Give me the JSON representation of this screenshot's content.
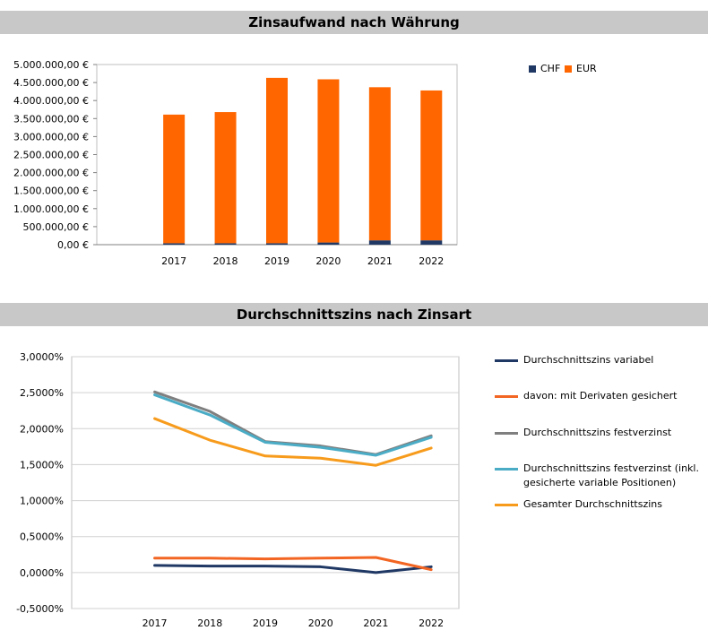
{
  "chart_data": [
    {
      "type": "bar",
      "stacked": true,
      "title": "Zinsaufwand nach Währung",
      "categories": [
        "2017",
        "2018",
        "2019",
        "2020",
        "2021",
        "2022"
      ],
      "series": [
        {
          "name": "CHF",
          "color": "#1f3864",
          "values": [
            40000,
            40000,
            40000,
            60000,
            120000,
            120000
          ]
        },
        {
          "name": "EUR",
          "color": "#ff6600",
          "values": [
            3570000,
            3640000,
            4590000,
            4530000,
            4250000,
            4160000
          ]
        }
      ],
      "ylim": [
        0,
        5000000
      ],
      "yticks": [
        0,
        500000,
        1000000,
        1500000,
        2000000,
        2500000,
        3000000,
        3500000,
        4000000,
        4500000,
        5000000
      ],
      "ytick_labels": [
        "0,00 €",
        "500.000,00 €",
        "1.000.000,00 €",
        "1.500.000,00 €",
        "2.000.000,00 €",
        "2.500.000,00 €",
        "3.000.000,00 €",
        "3.500.000,00 €",
        "4.000.000,00 €",
        "4.500.000,00 €",
        "5.000.000,00 €"
      ],
      "xlabel": "",
      "ylabel": "",
      "grid": false,
      "legend_position": "top-right"
    },
    {
      "type": "line",
      "title": "Durchschnittszins nach Zinsart",
      "categories": [
        "2017",
        "2018",
        "2019",
        "2020",
        "2021",
        "2022"
      ],
      "series": [
        {
          "name": "Durchschnittszins variabel",
          "color": "#1f3864",
          "values": [
            0.1,
            0.09,
            0.09,
            0.08,
            0.0,
            0.08
          ]
        },
        {
          "name": "davon: mit Derivaten gesichert",
          "color": "#f26522",
          "values": [
            0.2,
            0.2,
            0.19,
            0.2,
            0.21,
            0.04
          ]
        },
        {
          "name": "Durchschnittszins festverzinst",
          "color": "#7f7f7f",
          "values": [
            2.51,
            2.24,
            1.82,
            1.76,
            1.64,
            1.9
          ]
        },
        {
          "name": "Durchschnittszins festverzinst (inkl. gesicherte variable Positionen)",
          "color": "#4bacc6",
          "values": [
            2.47,
            2.19,
            1.81,
            1.74,
            1.63,
            1.88
          ]
        },
        {
          "name": "Gesamter Durchschnittszins",
          "color": "#f79b1c",
          "values": [
            2.14,
            1.84,
            1.62,
            1.59,
            1.49,
            1.73
          ]
        }
      ],
      "ylim": [
        -0.5,
        3.0
      ],
      "yticks": [
        -0.5,
        0.0,
        0.5,
        1.0,
        1.5,
        2.0,
        2.5,
        3.0
      ],
      "ytick_labels": [
        "-0,5000%",
        "0,0000%",
        "0,5000%",
        "1,0000%",
        "1,5000%",
        "2,0000%",
        "2,5000%",
        "3,0000%"
      ],
      "xlabel": "",
      "ylabel": "",
      "grid": true,
      "legend_position": "right"
    }
  ],
  "legend1": {
    "chf": "CHF",
    "eur": "EUR",
    "chf_color": "#1f3864",
    "eur_color": "#ff6600"
  },
  "legend2": {
    "items": [
      "Durchschnittszins variabel",
      "davon: mit Derivaten gesichert",
      "Durchschnittszins festverzinst",
      "Durchschnittszins festverzinst (inkl.",
      "gesicherte variable Positionen)",
      "Gesamter Durchschnittszins"
    ]
  },
  "header1": {
    "title": "Zinsaufwand nach Währung"
  },
  "header2": {
    "title": "Durchschnittszins nach Zinsart"
  }
}
